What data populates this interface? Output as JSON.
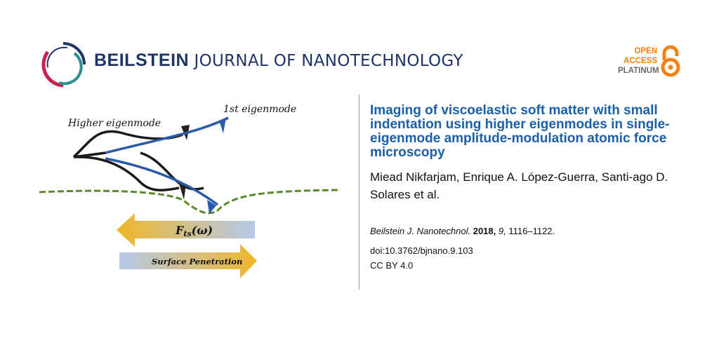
{
  "header": {
    "journal_bold": "BEILSTEIN",
    "journal_light": "JOURNAL OF NANOTECHNOLOGY",
    "open_access": [
      "OPEN",
      "ACCESS",
      "PLATINUM"
    ],
    "colors": {
      "journal": "#1f3366",
      "open_access": "#f68212",
      "logo_red": "#c8234a",
      "logo_teal": "#2a8f8f"
    }
  },
  "figure": {
    "label_higher": "Higher eigenmode",
    "label_first": "1st eigenmode",
    "arrow_force": "F",
    "arrow_force_sub": "ts",
    "arrow_force_arg": "(ω)",
    "arrow_penetration": "Surface Penetration"
  },
  "article": {
    "title": "Imaging of viscoelastic soft matter with small indentation using higher eigenmodes in single-eigenmode amplitude-modulation atomic force microscopy",
    "authors": "Miead Nikfarjam, Enrique A. López-Guerra, Santi-ago D. Solares et al.",
    "citation_journal": "Beilstein J. Nanotechnol.",
    "citation_year": "2018,",
    "citation_volume": "9,",
    "citation_pages": "1116–1122.",
    "doi": "doi:10.3762/bjnano.9.103",
    "license": "CC BY 4.0",
    "title_color": "#1a5fa8"
  }
}
